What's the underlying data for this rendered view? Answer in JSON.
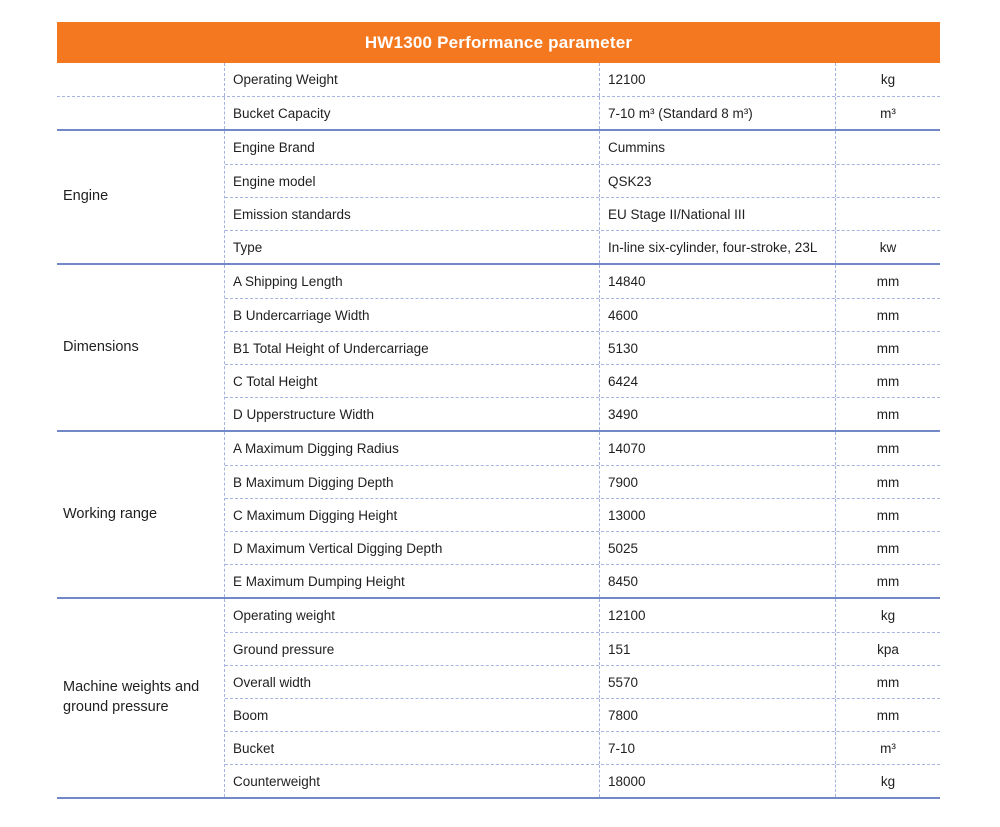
{
  "title": "HW1300 Performance parameter",
  "colors": {
    "header_bg": "#F4781F",
    "header_text": "#FFFFFF",
    "section_divider": "#7189C7",
    "row_divider": "#A7B4E0",
    "text": "#1F1F1F"
  },
  "sections": [
    {
      "label": "",
      "rows": [
        {
          "param": "Operating Weight",
          "value": "12100",
          "unit": "kg"
        },
        {
          "param": "Bucket Capacity",
          "value": "7-10 m³ (Standard 8 m³)",
          "unit": "m³"
        }
      ]
    },
    {
      "label": "Engine",
      "rows": [
        {
          "param": "Engine Brand",
          "value": "Cummins",
          "unit": ""
        },
        {
          "param": "Engine model",
          "value": "QSK23",
          "unit": ""
        },
        {
          "param": "Emission standards",
          "value": "EU Stage II/National III",
          "unit": ""
        },
        {
          "param": "Type",
          "value": "In-line six-cylinder, four-stroke, 23L",
          "unit": "kw"
        }
      ]
    },
    {
      "label": "Dimensions",
      "rows": [
        {
          "param": "A  Shipping Length",
          "value": "14840",
          "unit": "mm"
        },
        {
          "param": "B  Undercarriage Width",
          "value": "4600",
          "unit": "mm"
        },
        {
          "param": "B1 Total Height of Undercarriage",
          "value": "5130",
          "unit": "mm"
        },
        {
          "param": "C Total Height",
          "value": "6424",
          "unit": "mm"
        },
        {
          "param": "D Upperstructure Width",
          "value": "3490",
          "unit": "mm"
        }
      ]
    },
    {
      "label": "Working range",
      "rows": [
        {
          "param": "A Maximum Digging Radius",
          "value": "14070",
          "unit": "mm"
        },
        {
          "param": "B Maximum Digging Depth",
          "value": "7900",
          "unit": "mm"
        },
        {
          "param": "C Maximum Digging Height",
          "value": "13000",
          "unit": "mm"
        },
        {
          "param": "D Maximum Vertical Digging Depth",
          "value": "5025",
          "unit": "mm"
        },
        {
          "param": "E Maximum Dumping Height",
          "value": "8450",
          "unit": "mm"
        }
      ]
    },
    {
      "label": "Machine weights and ground pressure",
      "rows": [
        {
          "param": "Operating weight",
          "value": "12100",
          "unit": "kg"
        },
        {
          "param": "Ground pressure",
          "value": "151",
          "unit": "kpa"
        },
        {
          "param": "Overall width",
          "value": "5570",
          "unit": "mm"
        },
        {
          "param": "Boom",
          "value": "7800",
          "unit": "mm"
        },
        {
          "param": "Bucket",
          "value": "7-10",
          "unit": "m³"
        },
        {
          "param": "Counterweight",
          "value": "18000",
          "unit": "kg"
        }
      ]
    }
  ]
}
